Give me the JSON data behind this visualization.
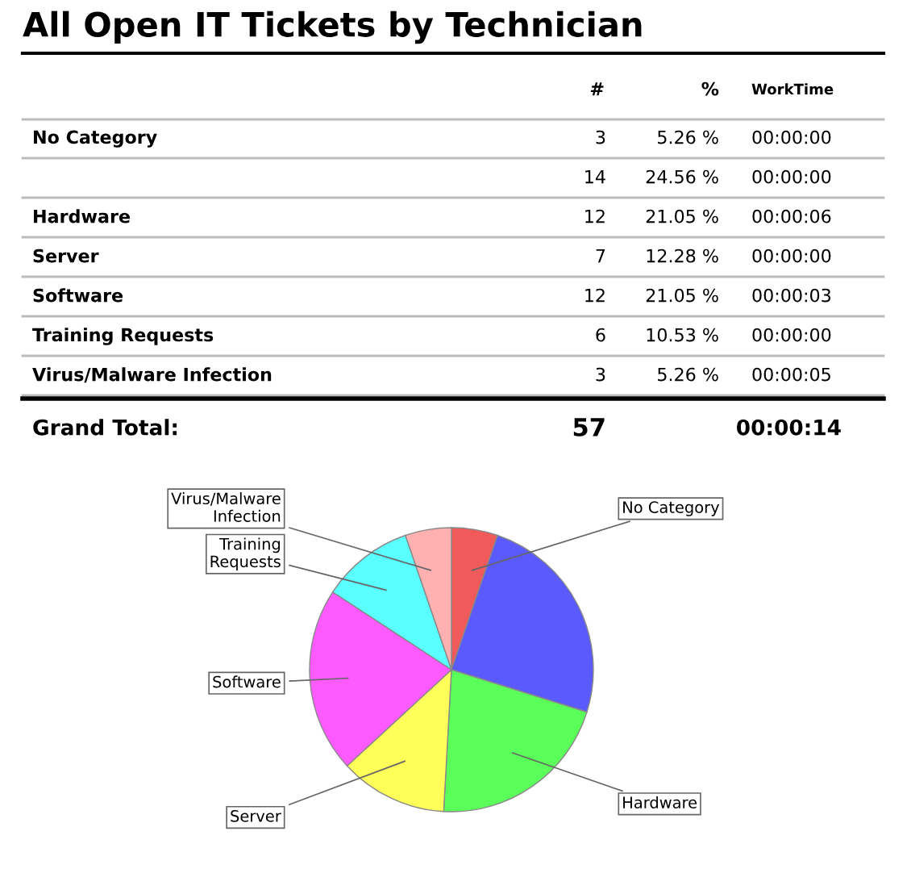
{
  "chart_data": {
    "type": "pie",
    "title": "All Open IT Tickets by Technician",
    "categories": [
      "No Category",
      null,
      "Hardware",
      "Server",
      "Software",
      "Training Requests",
      "Virus/Malware Infection"
    ],
    "values": [
      5.26,
      24.56,
      21.05,
      12.28,
      21.05,
      10.53,
      5.26
    ],
    "colors": [
      "#f05a5a",
      "#5a5aff",
      "#5aff5a",
      "#ffff5a",
      "#ff5aff",
      "#5affff",
      "#ffb0b0"
    ],
    "annotations": [
      "#",
      "%",
      "WorkTime",
      "3",
      "14",
      "12",
      "7",
      "12",
      "6",
      "3",
      "5.26 %",
      "24.56 %",
      "21.05 %",
      "12.28 %",
      "21.05 %",
      "10.53 %",
      "5.26 %",
      "00:00:00",
      "00:00:00",
      "00:00:06",
      "00:00:00",
      "00:00:03",
      "00:00:00",
      "00:00:05",
      "Grand Total:",
      "57",
      "00:00:14"
    ]
  }
}
